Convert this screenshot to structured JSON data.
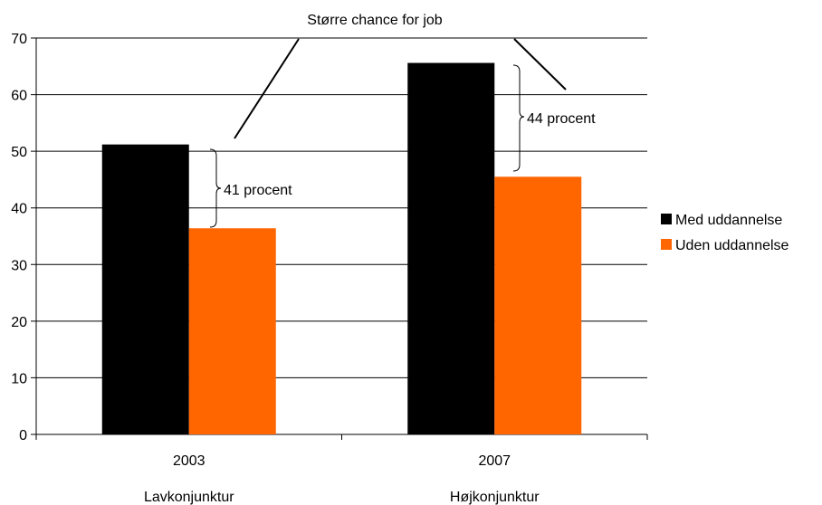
{
  "chart_data": {
    "type": "bar",
    "categories": [
      "2003",
      "2007"
    ],
    "sublabels": [
      "Lavkonjunktur",
      "Højkonjunktur"
    ],
    "series": [
      {
        "name": "Med uddannelse",
        "values": [
          51.2,
          65.6
        ],
        "color": "#000000"
      },
      {
        "name": "Uden uddannelse",
        "values": [
          36.4,
          45.5
        ],
        "color": "#ff6600"
      }
    ],
    "ylim": [
      0,
      70
    ],
    "yticks": [
      0,
      10,
      20,
      30,
      40,
      50,
      60,
      70
    ],
    "grid": true,
    "legend": "right",
    "annotations": {
      "callout": "Større chance for job",
      "gaps": [
        "41 procent",
        "44 procent"
      ]
    }
  }
}
